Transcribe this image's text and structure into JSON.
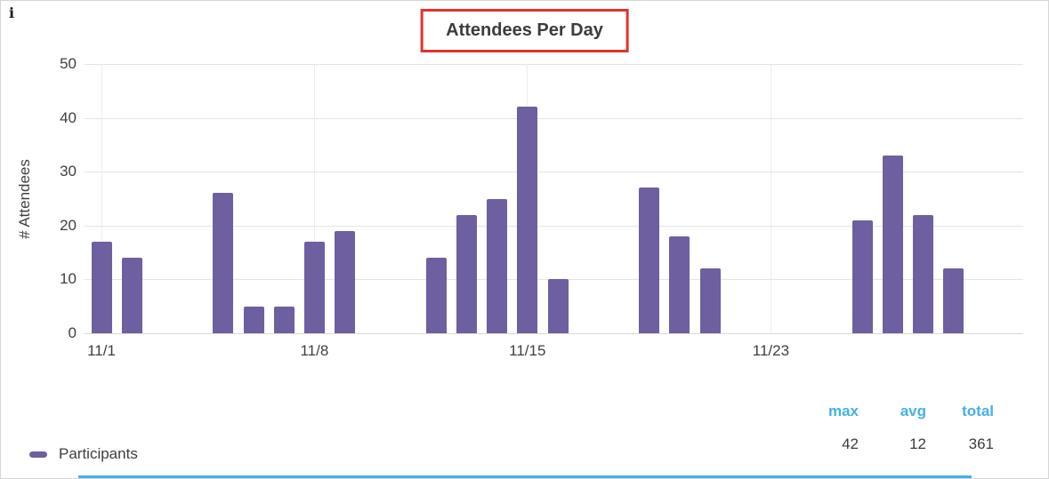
{
  "info_icon": "i",
  "header": {
    "title": "Attendees Per Day"
  },
  "y_axis": {
    "label": "# Attendees",
    "max": 50,
    "ticks": [
      "50",
      "40",
      "30",
      "20",
      "10",
      "0"
    ]
  },
  "x_axis": {
    "ticks": [
      {
        "label": "11/1",
        "day": 1
      },
      {
        "label": "11/8",
        "day": 8
      },
      {
        "label": "11/15",
        "day": 15
      },
      {
        "label": "11/23",
        "day": 23
      }
    ]
  },
  "chart_data": {
    "type": "bar",
    "title": "Attendees Per Day",
    "xlabel": "",
    "ylabel": "# Attendees",
    "ylim": [
      0,
      50
    ],
    "grid": true,
    "legend_position": "bottom-left",
    "series": [
      {
        "name": "Participants",
        "color": "#6e5fa1",
        "points": [
          {
            "date": "11/1",
            "day": 1,
            "value": 17
          },
          {
            "date": "11/2",
            "day": 2,
            "value": 14
          },
          {
            "date": "11/5",
            "day": 5,
            "value": 26
          },
          {
            "date": "11/6",
            "day": 6,
            "value": 5
          },
          {
            "date": "11/7",
            "day": 7,
            "value": 5
          },
          {
            "date": "11/8",
            "day": 8,
            "value": 17
          },
          {
            "date": "11/9",
            "day": 9,
            "value": 19
          },
          {
            "date": "11/12",
            "day": 12,
            "value": 14
          },
          {
            "date": "11/13",
            "day": 13,
            "value": 22
          },
          {
            "date": "11/14",
            "day": 14,
            "value": 25
          },
          {
            "date": "11/15",
            "day": 15,
            "value": 42
          },
          {
            "date": "11/16",
            "day": 16,
            "value": 10
          },
          {
            "date": "11/19",
            "day": 19,
            "value": 27
          },
          {
            "date": "11/20",
            "day": 20,
            "value": 18
          },
          {
            "date": "11/21",
            "day": 21,
            "value": 12
          },
          {
            "date": "11/26",
            "day": 26,
            "value": 21
          },
          {
            "date": "11/27",
            "day": 27,
            "value": 33
          },
          {
            "date": "11/28",
            "day": 28,
            "value": 22
          },
          {
            "date": "11/29",
            "day": 29,
            "value": 12
          }
        ]
      }
    ]
  },
  "legend": {
    "items": [
      {
        "label": "Participants",
        "color": "#6e5fa1"
      }
    ]
  },
  "stats": {
    "columns": [
      {
        "header": "max",
        "value": "42"
      },
      {
        "header": "avg",
        "value": "12"
      },
      {
        "header": "total",
        "value": "361"
      }
    ]
  },
  "colors": {
    "bar": "#6e5fa1",
    "accent_blue": "#45b0e5",
    "annotation_red": "#e0332a",
    "grid": "#e4e4e4",
    "grid_vertical": "#ececec",
    "text": "#3f3f3f"
  }
}
